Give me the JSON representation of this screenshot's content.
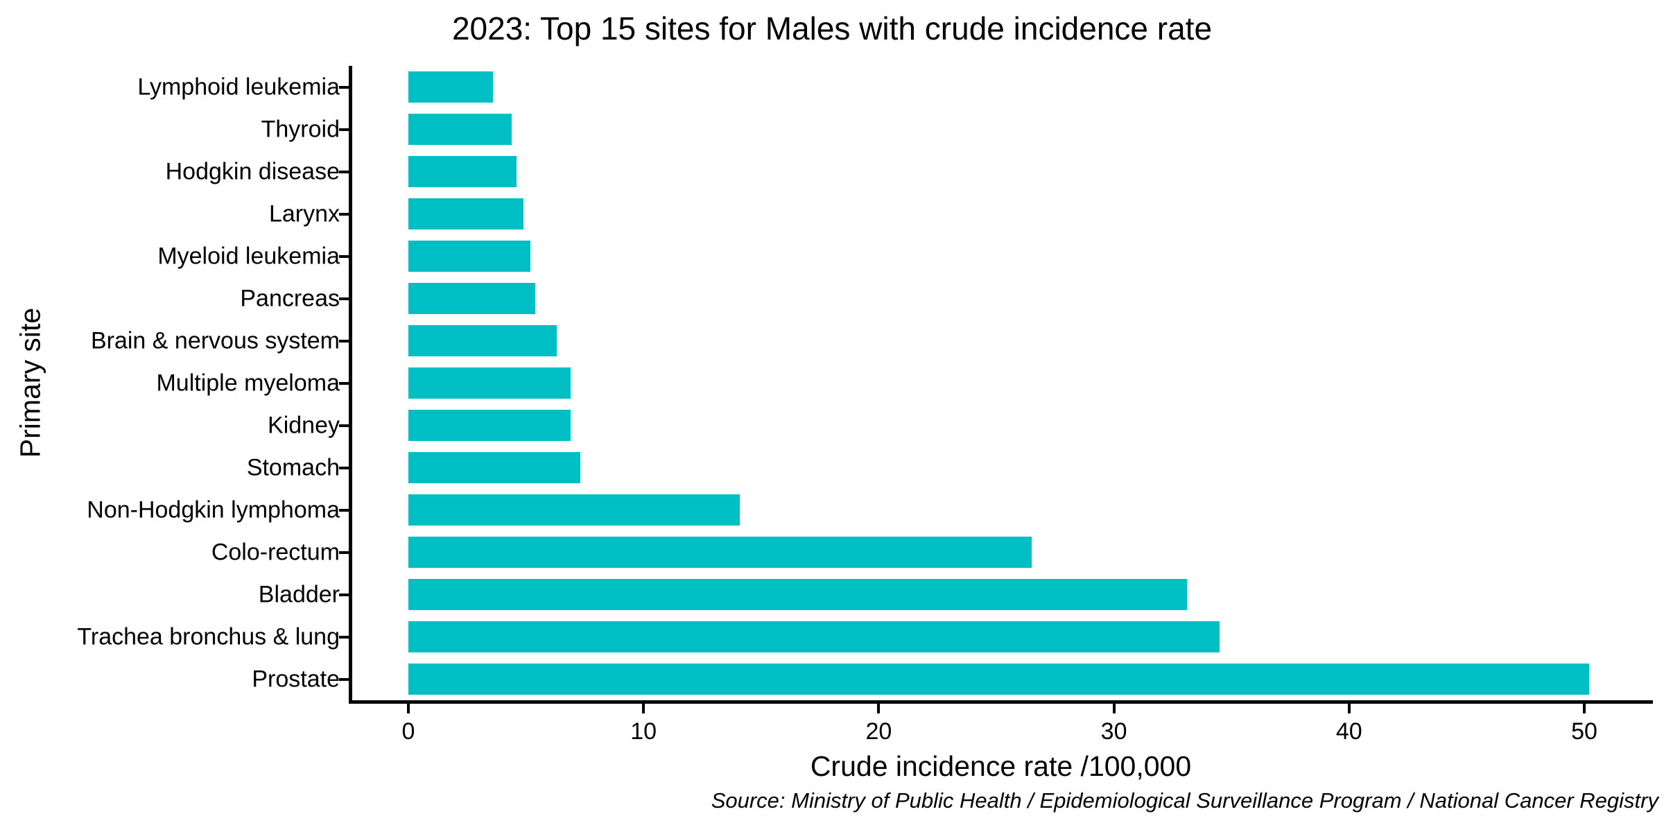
{
  "title": "2023: Top 15 sites for Males with crude incidence rate",
  "source_note": "Source: Ministry of Public Health / Epidemiological Surveillance Program / National Cancer Registry",
  "chart_data": {
    "type": "bar",
    "orientation": "horizontal",
    "title": "2023: Top 15 sites for Males with crude incidence rate",
    "xlabel": "Crude incidence rate /100,000",
    "ylabel": "Primary site",
    "categories": [
      "Lymphoid leukemia",
      "Thyroid",
      "Hodgkin disease",
      "Larynx",
      "Myeloid leukemia",
      "Pancreas",
      "Brain & nervous system",
      "Multiple myeloma",
      "Kidney",
      "Stomach",
      "Non-Hodgkin lymphoma",
      "Colo-rectum",
      "Bladder",
      "Trachea bronchus & lung",
      "Prostate"
    ],
    "values": [
      3.6,
      4.4,
      4.6,
      4.9,
      5.2,
      5.4,
      6.3,
      6.9,
      6.9,
      7.3,
      14.1,
      26.5,
      33.1,
      34.5,
      50.2
    ],
    "x_ticks": [
      0,
      10,
      20,
      30,
      40,
      50
    ],
    "xlim": [
      -2.5,
      52.9
    ],
    "bar_color": "#00BFC4",
    "text_color": "#000000",
    "grid": false,
    "legend": "none"
  }
}
